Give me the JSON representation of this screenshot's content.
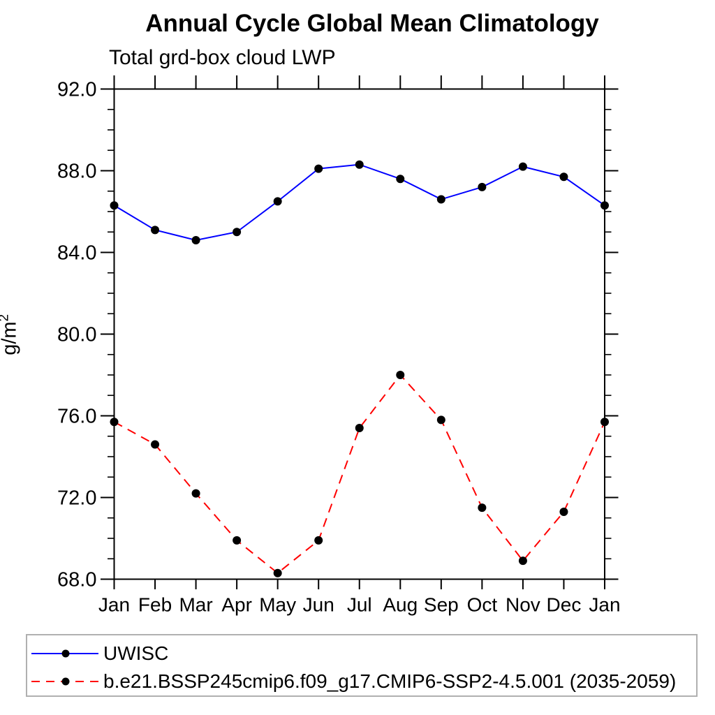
{
  "chart_data": {
    "type": "line",
    "title": "Annual Cycle Global Mean Climatology",
    "subtitle": "Total grd-box cloud LWP",
    "ylabel_base": "g/m",
    "ylabel_sup": "2",
    "ylim": [
      68,
      92
    ],
    "ytick_interval_major": 4,
    "ytick_interval_minor": 1,
    "ytick_labels": [
      "68.0",
      "72.0",
      "76.0",
      "80.0",
      "84.0",
      "88.0",
      "92.0"
    ],
    "categories": [
      "Jan",
      "Feb",
      "Mar",
      "Apr",
      "May",
      "Jun",
      "Jul",
      "Aug",
      "Sep",
      "Oct",
      "Nov",
      "Dec",
      "Jan"
    ],
    "grid": false,
    "legend_position": "bottom",
    "axis_color": "#000000",
    "marker": {
      "shape": "circle",
      "color": "#000000"
    },
    "series": [
      {
        "name": "UWISC",
        "color": "#0000ff",
        "line_style": "solid",
        "values": [
          86.3,
          85.1,
          84.6,
          85.0,
          86.5,
          88.1,
          88.3,
          87.6,
          86.6,
          87.2,
          88.2,
          87.7,
          86.3
        ]
      },
      {
        "name": "b.e21.BSSP245cmip6.f09_g17.CMIP6-SSP2-4.5.001 (2035-2059)",
        "color": "#ff0000",
        "line_style": "dashed",
        "values": [
          75.7,
          74.6,
          72.2,
          69.9,
          68.3,
          69.9,
          75.4,
          78.0,
          75.8,
          71.5,
          68.9,
          71.3,
          75.7
        ]
      }
    ]
  }
}
